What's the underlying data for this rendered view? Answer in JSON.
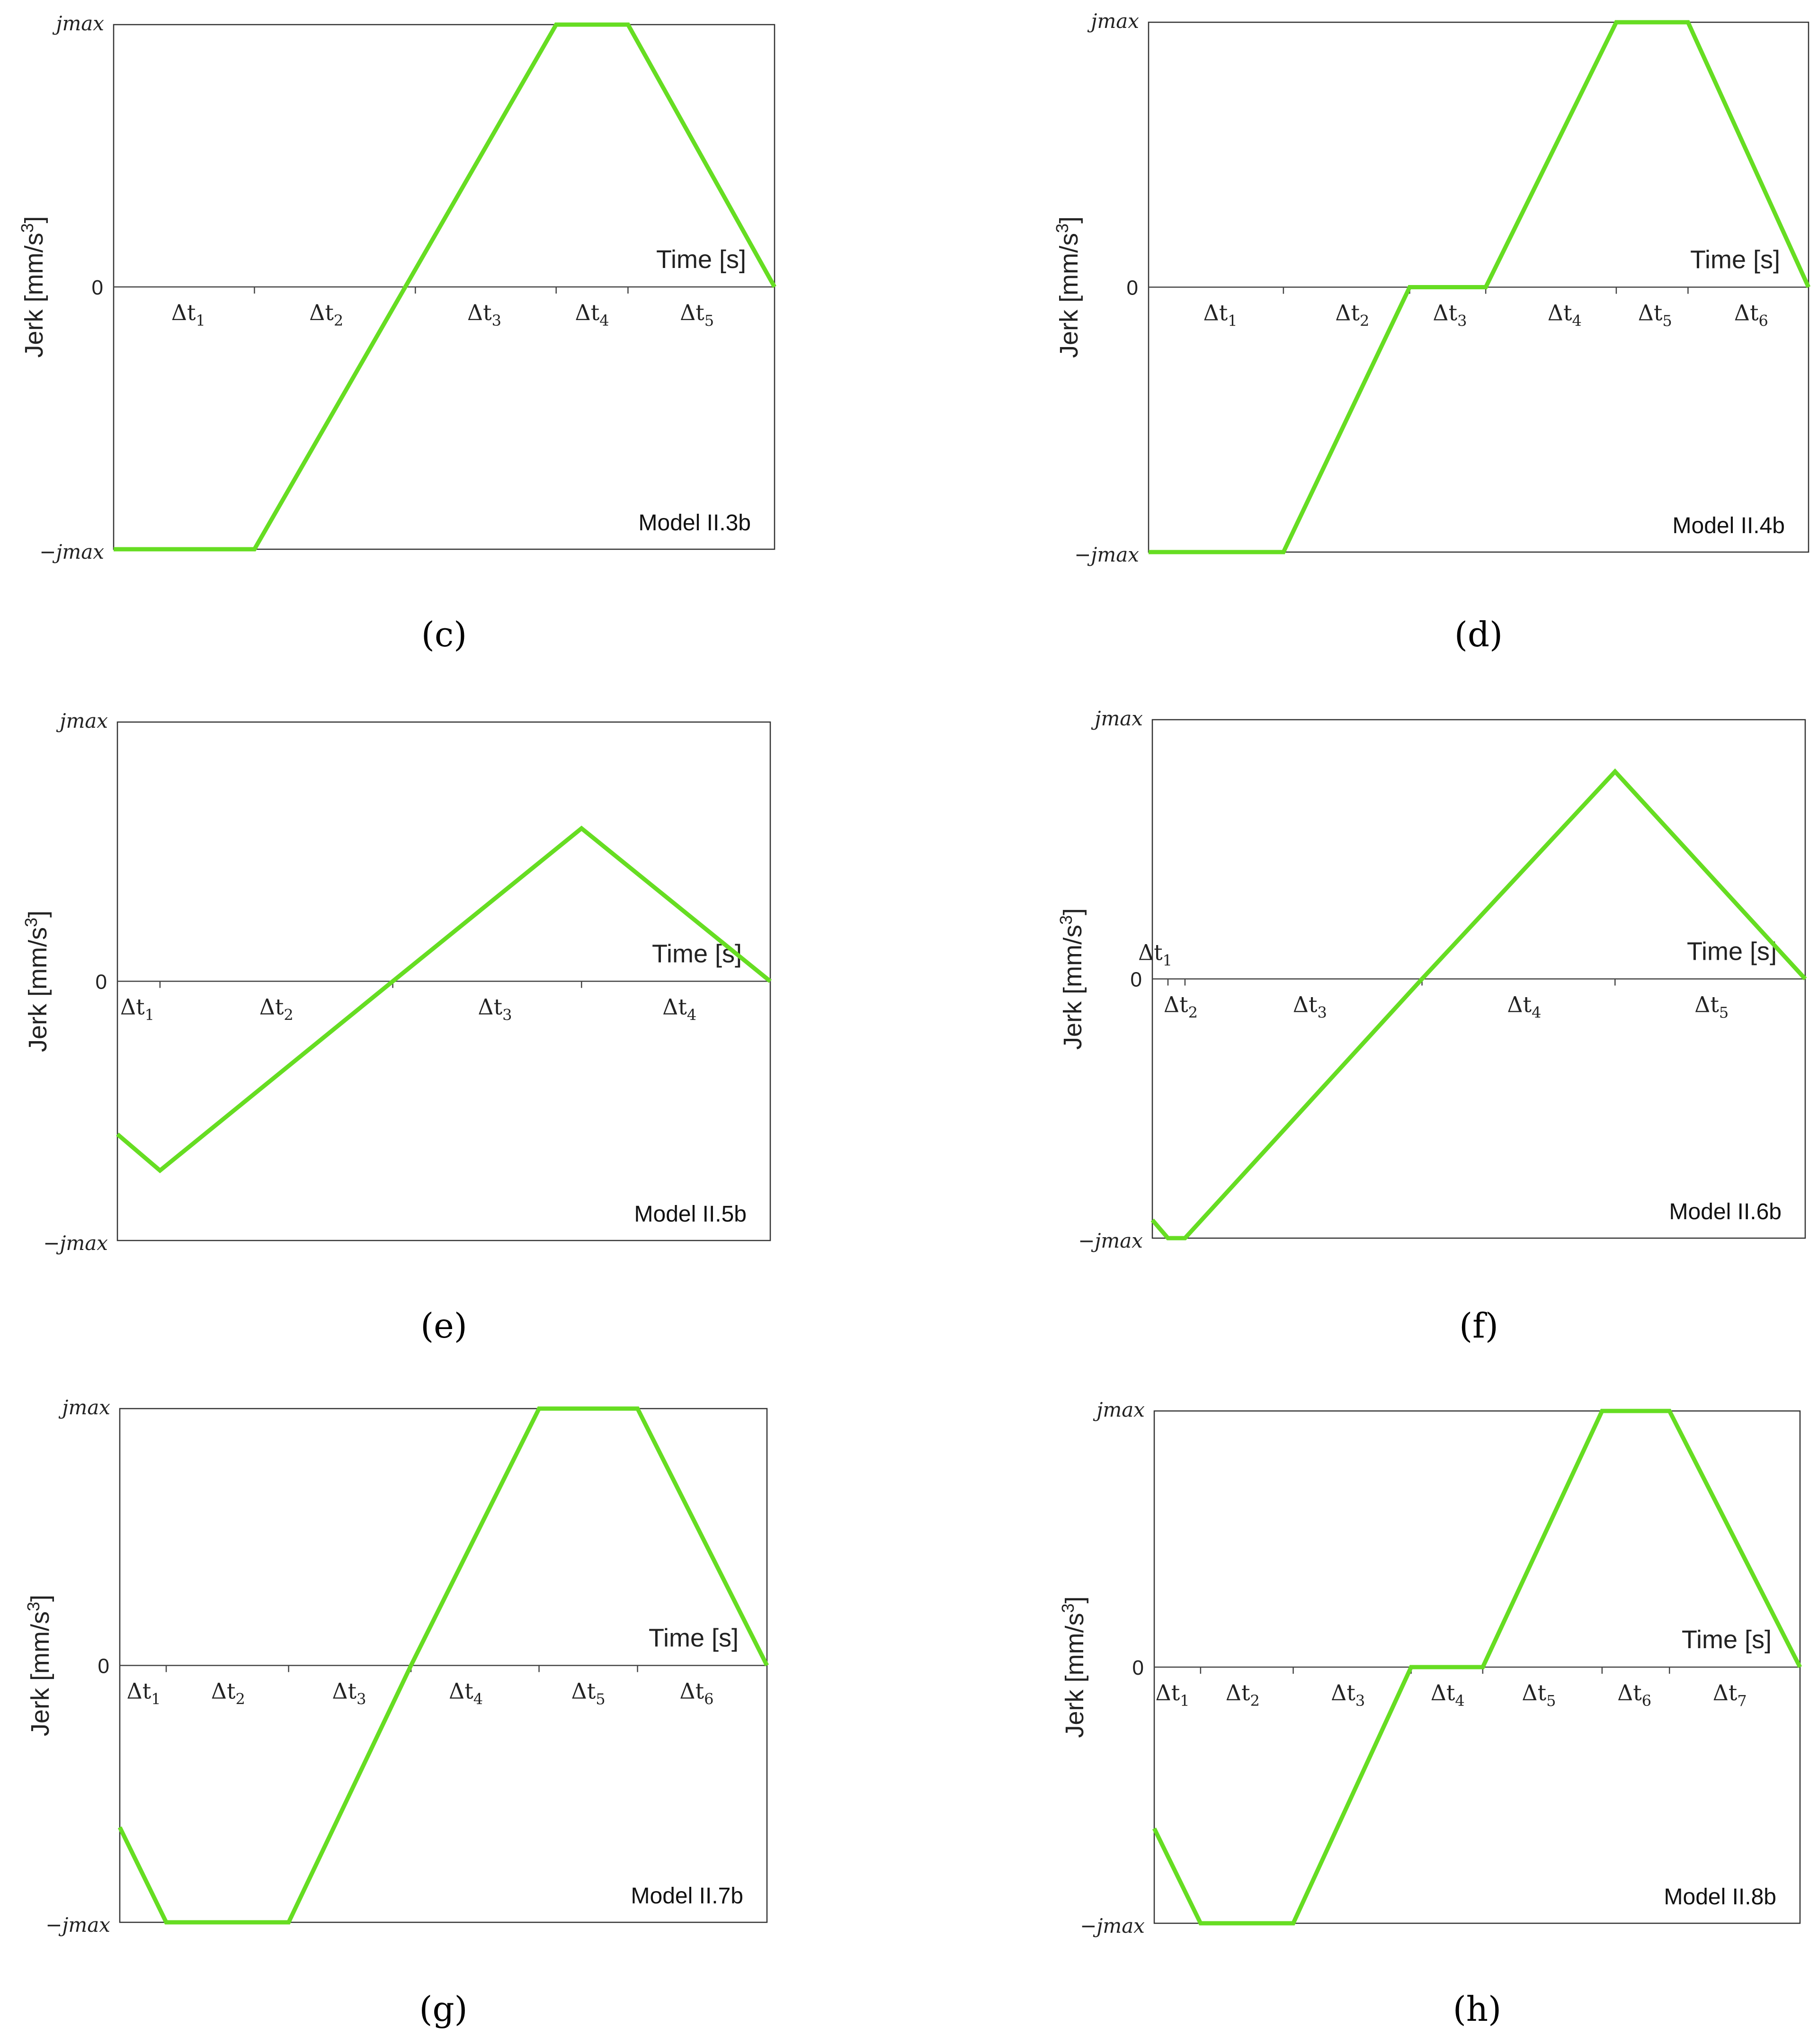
{
  "figure": {
    "ylabel": "Jerk [mm/s3]",
    "ylabel_main": "Jerk [mm/s",
    "ylabel_sup": "3",
    "ylabel_close": "]",
    "xlabel": "Time [s]",
    "ytick_top": "jmax",
    "ytick_zero": "0",
    "ytick_bottom": "−jmax",
    "line_color": "#66dd22"
  },
  "chart_data": [
    {
      "type": "line",
      "panel": "c",
      "caption": "(c)",
      "caption_letter": "c",
      "model": "Model II.3b",
      "xlabel": "Time [s]",
      "ylabel": "Jerk [mm/s3]",
      "ylim": [
        -1,
        1
      ],
      "yticks": [
        "−jmax",
        "0",
        "jmax"
      ],
      "xlim": [
        0,
        4.6
      ],
      "boundaries": [
        0,
        0.98,
        2.1,
        3.08,
        3.58,
        4.6
      ],
      "intervals": [
        {
          "symbol": "Δt",
          "sub": "1"
        },
        {
          "symbol": "Δt",
          "sub": "2"
        },
        {
          "symbol": "Δt",
          "sub": "3"
        },
        {
          "symbol": "Δt",
          "sub": "4"
        },
        {
          "symbol": "Δt",
          "sub": "5"
        }
      ],
      "interval_label_pos": [
        0.52,
        1.48,
        2.58,
        3.33,
        4.06
      ],
      "series": [
        {
          "name": "Jerk",
          "x": [
            0,
            0.98,
            3.08,
            3.58,
            4.6
          ],
          "y": [
            -1,
            -1,
            1,
            1,
            0
          ]
        }
      ]
    },
    {
      "type": "line",
      "panel": "d",
      "caption": "(d)",
      "caption_letter": "d",
      "model": "Model II.4b",
      "xlabel": "Time [s]",
      "ylabel": "Jerk [mm/s3]",
      "ylim": [
        -1,
        1
      ],
      "yticks": [
        "−jmax",
        "0",
        "jmax"
      ],
      "xlim": [
        0,
        4.6
      ],
      "boundaries": [
        0,
        0.94,
        1.82,
        2.35,
        3.26,
        3.76,
        4.6
      ],
      "intervals": [
        {
          "symbol": "Δt",
          "sub": "1"
        },
        {
          "symbol": "Δt",
          "sub": "2"
        },
        {
          "symbol": "Δt",
          "sub": "3"
        },
        {
          "symbol": "Δt",
          "sub": "4"
        },
        {
          "symbol": "Δt",
          "sub": "5"
        },
        {
          "symbol": "Δt",
          "sub": "6"
        }
      ],
      "interval_label_pos": [
        0.5,
        1.42,
        2.1,
        2.9,
        3.53,
        4.2
      ],
      "series": [
        {
          "name": "Jerk",
          "x": [
            0,
            0.94,
            1.82,
            2.35,
            3.26,
            3.76,
            4.6
          ],
          "y": [
            -1,
            -1,
            0,
            0,
            1,
            1,
            0
          ]
        }
      ]
    },
    {
      "type": "line",
      "panel": "e",
      "caption": "(e)",
      "caption_letter": "e",
      "model": "Model II.5b",
      "xlabel": "Time [s]",
      "ylabel": "Jerk [mm/s3]",
      "ylim": [
        -1,
        1
      ],
      "yticks": [
        "−jmax",
        "0",
        "jmax"
      ],
      "xlim": [
        0,
        4.6
      ],
      "boundaries": [
        0,
        0.3,
        1.94,
        3.27,
        4.6
      ],
      "intervals": [
        {
          "symbol": "Δt",
          "sub": "1"
        },
        {
          "symbol": "Δt",
          "sub": "2"
        },
        {
          "symbol": "Δt",
          "sub": "3"
        },
        {
          "symbol": "Δt",
          "sub": "4"
        }
      ],
      "interval_label_pos": [
        0.14,
        1.12,
        2.66,
        3.96
      ],
      "series": [
        {
          "name": "Jerk",
          "x": [
            0,
            0.3,
            1.94,
            3.27,
            4.6
          ],
          "y": [
            -0.59,
            -0.73,
            0,
            0.59,
            0
          ]
        }
      ]
    },
    {
      "type": "line",
      "panel": "f",
      "caption": "(f)",
      "caption_letter": "f",
      "model": "Model II.6b",
      "xlabel": "Time [s]",
      "ylabel": "Jerk [mm/s3]",
      "ylim": [
        -1,
        1
      ],
      "yticks": [
        "−jmax",
        "0",
        "jmax"
      ],
      "xlim": [
        0,
        4.6
      ],
      "boundaries": [
        0,
        0.11,
        0.23,
        1.9,
        3.26,
        4.6
      ],
      "intervals": [
        {
          "symbol": "Δt",
          "sub": "1"
        },
        {
          "symbol": "Δt",
          "sub": "2"
        },
        {
          "symbol": "Δt",
          "sub": "3"
        },
        {
          "symbol": "Δt",
          "sub": "4"
        },
        {
          "symbol": "Δt",
          "sub": "5"
        }
      ],
      "interval_label_pos": [
        0.02,
        0.2,
        1.11,
        2.62,
        3.94
      ],
      "interval_label_row": [
        -1,
        1,
        1,
        1,
        1
      ],
      "series": [
        {
          "name": "Jerk",
          "x": [
            0,
            0.11,
            0.23,
            1.9,
            3.26,
            4.6
          ],
          "y": [
            -0.93,
            -1,
            -1,
            0,
            0.8,
            0
          ]
        }
      ]
    },
    {
      "type": "line",
      "panel": "g",
      "caption": "(g)",
      "caption_letter": "g",
      "model": "Model II.7b",
      "xlabel": "Time [s]",
      "ylabel": "Jerk [mm/s3]",
      "ylim": [
        -1,
        1
      ],
      "yticks": [
        "−jmax",
        "0",
        "jmax"
      ],
      "xlim": [
        0,
        4.6
      ],
      "boundaries": [
        0,
        0.33,
        1.2,
        2.07,
        2.98,
        3.68,
        4.6
      ],
      "intervals": [
        {
          "symbol": "Δt",
          "sub": "1"
        },
        {
          "symbol": "Δt",
          "sub": "2"
        },
        {
          "symbol": "Δt",
          "sub": "3"
        },
        {
          "symbol": "Δt",
          "sub": "4"
        },
        {
          "symbol": "Δt",
          "sub": "5"
        },
        {
          "symbol": "Δt",
          "sub": "6"
        }
      ],
      "interval_label_pos": [
        0.17,
        0.77,
        1.63,
        2.46,
        3.33,
        4.1
      ],
      "series": [
        {
          "name": "Jerk",
          "x": [
            0,
            0.33,
            1.2,
            2.07,
            2.98,
            3.68,
            4.6
          ],
          "y": [
            -0.63,
            -1,
            -1,
            0,
            1,
            1,
            0
          ]
        }
      ]
    },
    {
      "type": "line",
      "panel": "h",
      "caption": "(h)",
      "caption_letter": "h",
      "model": "Model II.8b",
      "xlabel": "Time [s]",
      "ylabel": "Jerk [mm/s3]",
      "ylim": [
        -1,
        1
      ],
      "yticks": [
        "−jmax",
        "0",
        "jmax"
      ],
      "xlim": [
        0,
        4.6
      ],
      "boundaries": [
        0,
        0.33,
        0.99,
        1.83,
        2.34,
        3.19,
        3.67,
        4.6
      ],
      "intervals": [
        {
          "symbol": "Δt",
          "sub": "1"
        },
        {
          "symbol": "Δt",
          "sub": "2"
        },
        {
          "symbol": "Δt",
          "sub": "3"
        },
        {
          "symbol": "Δt",
          "sub": "4"
        },
        {
          "symbol": "Δt",
          "sub": "5"
        },
        {
          "symbol": "Δt",
          "sub": "6"
        },
        {
          "symbol": "Δt",
          "sub": "7"
        }
      ],
      "interval_label_pos": [
        0.13,
        0.63,
        1.38,
        2.09,
        2.74,
        3.42,
        4.1
      ],
      "series": [
        {
          "name": "Jerk",
          "x": [
            0,
            0.33,
            0.99,
            1.83,
            2.34,
            3.19,
            3.67,
            4.6
          ],
          "y": [
            -0.63,
            -1,
            -1,
            0,
            0,
            1,
            1,
            0
          ]
        }
      ]
    }
  ]
}
